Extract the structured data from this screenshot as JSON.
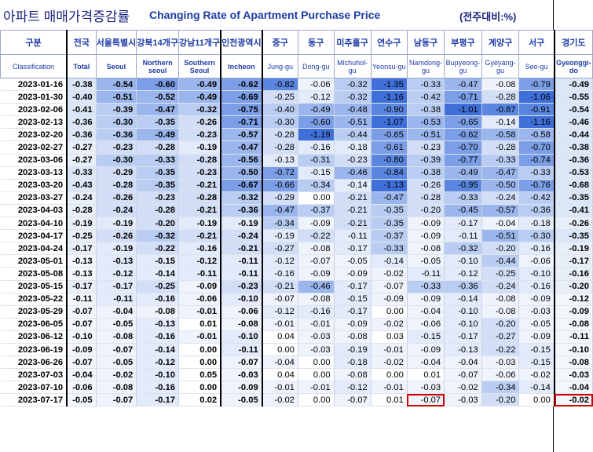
{
  "title": {
    "korean": "아파트 매매가격증감률",
    "english": "Changing Rate of Apartment Purchase Price",
    "unit": "(전주대비:%)"
  },
  "columns": [
    {
      "kr": "구분",
      "en": "Classification",
      "bold": false
    },
    {
      "kr": "전국",
      "en": "Total",
      "bold": true
    },
    {
      "kr": "서울특별시",
      "en": "Seoul",
      "bold": true
    },
    {
      "kr": "강북14개구",
      "en": "Northern seoul",
      "bold": true
    },
    {
      "kr": "강남11개구",
      "en": "Southern Seoul",
      "bold": true
    },
    {
      "kr": "인천광역시",
      "en": "Incheon",
      "bold": true
    },
    {
      "kr": "중구",
      "en": "Jung-gu",
      "bold": false
    },
    {
      "kr": "동구",
      "en": "Dong-gu",
      "bold": false
    },
    {
      "kr": "미추홀구",
      "en": "Michuhol-gu",
      "bold": false
    },
    {
      "kr": "연수구",
      "en": "Yeonsu-gu",
      "bold": false
    },
    {
      "kr": "남동구",
      "en": "Namdong-gu",
      "bold": false
    },
    {
      "kr": "부평구",
      "en": "Bupyeong-gu",
      "bold": false
    },
    {
      "kr": "계양구",
      "en": "Gyeyang-gu",
      "bold": false
    },
    {
      "kr": "서구",
      "en": "Seo-gu",
      "bold": false
    },
    {
      "kr": "경기도",
      "en": "Gyeonggi-do",
      "bold": true
    }
  ],
  "rows": [
    {
      "date": "2023-01-16",
      "values": [
        "-0.38",
        "-0.54",
        "-0.60",
        "-0.49",
        "-0.62",
        "-0.82",
        "-0.06",
        "-0.32",
        "-1.35",
        "-0.33",
        "-0.47",
        "-0.08",
        "-0.79",
        "-0.49"
      ]
    },
    {
      "date": "2023-01-30",
      "values": [
        "-0.40",
        "-0.51",
        "-0.52",
        "-0.49",
        "-0.69",
        "-0.25",
        "-0.12",
        "-0.32",
        "-1.16",
        "-0.42",
        "-0.71",
        "-0.28",
        "-1.06",
        "-0.55"
      ]
    },
    {
      "date": "2023-02-06",
      "values": [
        "-0.41",
        "-0.39",
        "-0.47",
        "-0.32",
        "-0.75",
        "-0.40",
        "-0.49",
        "-0.48",
        "-0.90",
        "-0.38",
        "-1.01",
        "-0.87",
        "-0.91",
        "-0.54"
      ]
    },
    {
      "date": "2023-02-13",
      "values": [
        "-0.36",
        "-0.30",
        "-0.35",
        "-0.26",
        "-0.71",
        "-0.30",
        "-0.60",
        "-0.51",
        "-1.07",
        "-0.53",
        "-0.65",
        "-0.14",
        "-1.16",
        "-0.46"
      ]
    },
    {
      "date": "2023-02-20",
      "values": [
        "-0.36",
        "-0.36",
        "-0.49",
        "-0.23",
        "-0.57",
        "-0.28",
        "-1.19",
        "-0.44",
        "-0.65",
        "-0.51",
        "-0.62",
        "-0.58",
        "-0.58",
        "-0.44"
      ]
    },
    {
      "date": "2023-02-27",
      "values": [
        "-0.27",
        "-0.23",
        "-0.28",
        "-0.19",
        "-0.47",
        "-0.28",
        "-0.16",
        "-0.18",
        "-0.61",
        "-0.23",
        "-0.70",
        "-0.28",
        "-0.70",
        "-0.38"
      ]
    },
    {
      "date": "2023-03-06",
      "values": [
        "-0.27",
        "-0.30",
        "-0.33",
        "-0.28",
        "-0.56",
        "-0.13",
        "-0.31",
        "-0.23",
        "-0.80",
        "-0.39",
        "-0.77",
        "-0.33",
        "-0.74",
        "-0.36"
      ]
    },
    {
      "date": "2023-03-13",
      "values": [
        "-0.33",
        "-0.29",
        "-0.35",
        "-0.23",
        "-0.50",
        "-0.72",
        "-0.15",
        "-0.46",
        "-0.84",
        "-0.38",
        "-0.49",
        "-0.47",
        "-0.33",
        "-0.53"
      ]
    },
    {
      "date": "2023-03-20",
      "values": [
        "-0.43",
        "-0.28",
        "-0.35",
        "-0.21",
        "-0.67",
        "-0.66",
        "-0.34",
        "-0.14",
        "-1.13",
        "-0.26",
        "-0.95",
        "-0.50",
        "-0.76",
        "-0.68"
      ]
    },
    {
      "date": "2023-03-27",
      "values": [
        "-0.24",
        "-0.26",
        "-0.23",
        "-0.28",
        "-0.32",
        "-0.29",
        "0.00",
        "-0.21",
        "-0.47",
        "-0.28",
        "-0.33",
        "-0.24",
        "-0.42",
        "-0.35"
      ]
    },
    {
      "date": "2023-04-03",
      "values": [
        "-0.28",
        "-0.24",
        "-0.28",
        "-0.21",
        "-0.36",
        "-0.47",
        "-0.37",
        "-0.21",
        "-0.35",
        "-0.20",
        "-0.45",
        "-0.57",
        "-0.36",
        "-0.41"
      ]
    },
    {
      "date": "2023-04-10",
      "values": [
        "-0.19",
        "-0.19",
        "-0.20",
        "-0.19",
        "-0.19",
        "-0.34",
        "-0.09",
        "-0.21",
        "-0.35",
        "-0.09",
        "-0.17",
        "-0.04",
        "-0.18",
        "-0.26"
      ]
    },
    {
      "date": "2023-04-17",
      "values": [
        "-0.25",
        "-0.26",
        "-0.32",
        "-0.21",
        "-0.24",
        "-0.19",
        "-0.22",
        "-0.11",
        "-0.37",
        "-0.09",
        "-0.11",
        "-0.51",
        "-0.30",
        "-0.35"
      ]
    },
    {
      "date": "2023-04-24",
      "values": [
        "-0.17",
        "-0.19",
        "-0.22",
        "-0.16",
        "-0.21",
        "-0.27",
        "-0.08",
        "-0.17",
        "-0.33",
        "-0.08",
        "-0.32",
        "-0.20",
        "-0.16",
        "-0.19"
      ]
    },
    {
      "date": "2023-05-01",
      "values": [
        "-0.13",
        "-0.13",
        "-0.15",
        "-0.12",
        "-0.11",
        "-0.12",
        "-0.07",
        "-0.05",
        "-0.14",
        "-0.05",
        "-0.10",
        "-0.44",
        "-0.06",
        "-0.17"
      ]
    },
    {
      "date": "2023-05-08",
      "values": [
        "-0.13",
        "-0.12",
        "-0.14",
        "-0.11",
        "-0.11",
        "-0.16",
        "-0.09",
        "-0.09",
        "-0.02",
        "-0.11",
        "-0.12",
        "-0.25",
        "-0.10",
        "-0.16"
      ]
    },
    {
      "date": "2023-05-15",
      "values": [
        "-0.17",
        "-0.17",
        "-0.25",
        "-0.09",
        "-0.23",
        "-0.21",
        "-0.46",
        "-0.17",
        "-0.07",
        "-0.33",
        "-0.36",
        "-0.24",
        "-0.16",
        "-0.20"
      ]
    },
    {
      "date": "2023-05-22",
      "values": [
        "-0.11",
        "-0.11",
        "-0.16",
        "-0.06",
        "-0.10",
        "-0.07",
        "-0.08",
        "-0.15",
        "-0.09",
        "-0.09",
        "-0.14",
        "-0.08",
        "-0.09",
        "-0.12"
      ]
    },
    {
      "date": "2023-05-29",
      "values": [
        "-0.07",
        "-0.04",
        "-0.08",
        "-0.01",
        "-0.06",
        "-0.12",
        "-0.16",
        "-0.17",
        "0.00",
        "-0.04",
        "-0.10",
        "-0.08",
        "-0.03",
        "-0.09"
      ]
    },
    {
      "date": "2023-06-05",
      "values": [
        "-0.07",
        "-0.05",
        "-0.13",
        "0.01",
        "-0.08",
        "-0.01",
        "-0.01",
        "-0.09",
        "-0.02",
        "-0.06",
        "-0.10",
        "-0.20",
        "-0.05",
        "-0.08"
      ]
    },
    {
      "date": "2023-06-12",
      "values": [
        "-0.10",
        "-0.08",
        "-0.16",
        "-0.01",
        "-0.10",
        "0.04",
        "-0.03",
        "-0.08",
        "0.03",
        "-0.15",
        "-0.17",
        "-0.27",
        "-0.09",
        "-0.11"
      ]
    },
    {
      "date": "2023-06-19",
      "values": [
        "-0.09",
        "-0.07",
        "-0.14",
        "0.00",
        "-0.11",
        "0.00",
        "-0.03",
        "-0.19",
        "-0.01",
        "-0.09",
        "-0.13",
        "-0.22",
        "-0.15",
        "-0.10"
      ]
    },
    {
      "date": "2023-06-26",
      "values": [
        "-0.07",
        "-0.05",
        "-0.12",
        "0.00",
        "-0.07",
        "-0.04",
        "0.00",
        "-0.18",
        "-0.02",
        "-0.04",
        "-0.04",
        "-0.03",
        "-0.15",
        "-0.08"
      ]
    },
    {
      "date": "2023-07-03",
      "values": [
        "-0.04",
        "-0.02",
        "-0.10",
        "0.05",
        "-0.03",
        "0.04",
        "0.00",
        "-0.08",
        "0.00",
        "0.01",
        "-0.07",
        "-0.06",
        "-0.02",
        "-0.03"
      ]
    },
    {
      "date": "2023-07-10",
      "values": [
        "-0.06",
        "-0.08",
        "-0.16",
        "0.00",
        "-0.09",
        "-0.01",
        "-0.01",
        "-0.12",
        "-0.01",
        "-0.03",
        "-0.02",
        "-0.34",
        "-0.14",
        "-0.04"
      ]
    },
    {
      "date": "2023-07-17",
      "values": [
        "-0.05",
        "-0.07",
        "-0.17",
        "0.02",
        "-0.05",
        "-0.02",
        "0.00",
        "-0.07",
        "0.01",
        "-0.07",
        "-0.03",
        "-0.20",
        "0.00",
        "-0.02"
      ]
    }
  ],
  "highlighted_cells": [
    {
      "row": 25,
      "col": 9
    },
    {
      "row": 25,
      "col": 13
    }
  ],
  "colors": {
    "header_text": "#1f3aa7",
    "highlight_border": "#d00000"
  }
}
